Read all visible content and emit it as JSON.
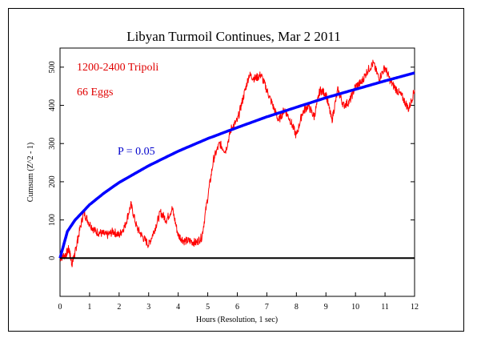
{
  "chart_data": {
    "type": "line",
    "title": "Libyan Turmoil Continues, Mar 2 2011",
    "xlabel": "Hours (Resolution, 1 sec)",
    "ylabel": "Cumsum (Z^2 - 1)",
    "xlim": [
      0,
      12
    ],
    "ylim": [
      -100,
      550
    ],
    "x_ticks": [
      0,
      1,
      2,
      3,
      4,
      5,
      6,
      7,
      8,
      9,
      10,
      11,
      12
    ],
    "y_ticks": [
      0,
      100,
      200,
      300,
      400,
      500
    ],
    "grid": false,
    "annotations": [
      {
        "text": "1200-2400 Tripoli",
        "color": "#e00000"
      },
      {
        "text": "66 Eggs",
        "color": "#e00000"
      },
      {
        "text": "P = 0.05",
        "color": "#0000cc"
      }
    ],
    "series": [
      {
        "color": "#ff0000",
        "kind": "cumsum",
        "x": [
          0,
          0.2,
          0.3,
          0.4,
          0.5,
          0.6,
          0.8,
          1.0,
          1.2,
          1.4,
          1.6,
          1.8,
          2.0,
          2.2,
          2.4,
          2.6,
          2.8,
          3.0,
          3.2,
          3.4,
          3.6,
          3.8,
          4.0,
          4.2,
          4.4,
          4.6,
          4.8,
          5.0,
          5.2,
          5.4,
          5.6,
          5.8,
          6.0,
          6.2,
          6.4,
          6.6,
          6.8,
          7.0,
          7.2,
          7.4,
          7.6,
          7.8,
          8.0,
          8.2,
          8.4,
          8.6,
          8.8,
          9.0,
          9.2,
          9.4,
          9.6,
          9.8,
          10.0,
          10.2,
          10.4,
          10.6,
          10.8,
          11.0,
          11.2,
          11.4,
          11.6,
          11.8,
          12.0
        ],
        "values": [
          0,
          10,
          25,
          -15,
          10,
          50,
          120,
          90,
          70,
          65,
          60,
          70,
          60,
          85,
          140,
          80,
          55,
          35,
          75,
          120,
          100,
          130,
          60,
          45,
          45,
          40,
          55,
          160,
          260,
          300,
          280,
          340,
          360,
          420,
          480,
          470,
          480,
          440,
          400,
          360,
          390,
          360,
          320,
          380,
          400,
          370,
          440,
          430,
          360,
          440,
          400,
          410,
          450,
          460,
          490,
          510,
          470,
          500,
          460,
          440,
          420,
          390,
          440
        ]
      },
      {
        "name": "P = 0.05",
        "color": "#0000ff",
        "kind": "envelope",
        "x": [
          0,
          0.25,
          0.5,
          1,
          1.5,
          2,
          3,
          4,
          5,
          6,
          7,
          8,
          9,
          10,
          11,
          12
        ],
        "values": [
          0,
          70,
          99,
          140,
          171,
          198,
          242,
          280,
          313,
          342,
          370,
          395,
          420,
          442,
          464,
          485
        ]
      },
      {
        "color": "#000000",
        "kind": "baseline",
        "x": [
          0,
          12
        ],
        "values": [
          0,
          0
        ]
      }
    ]
  }
}
